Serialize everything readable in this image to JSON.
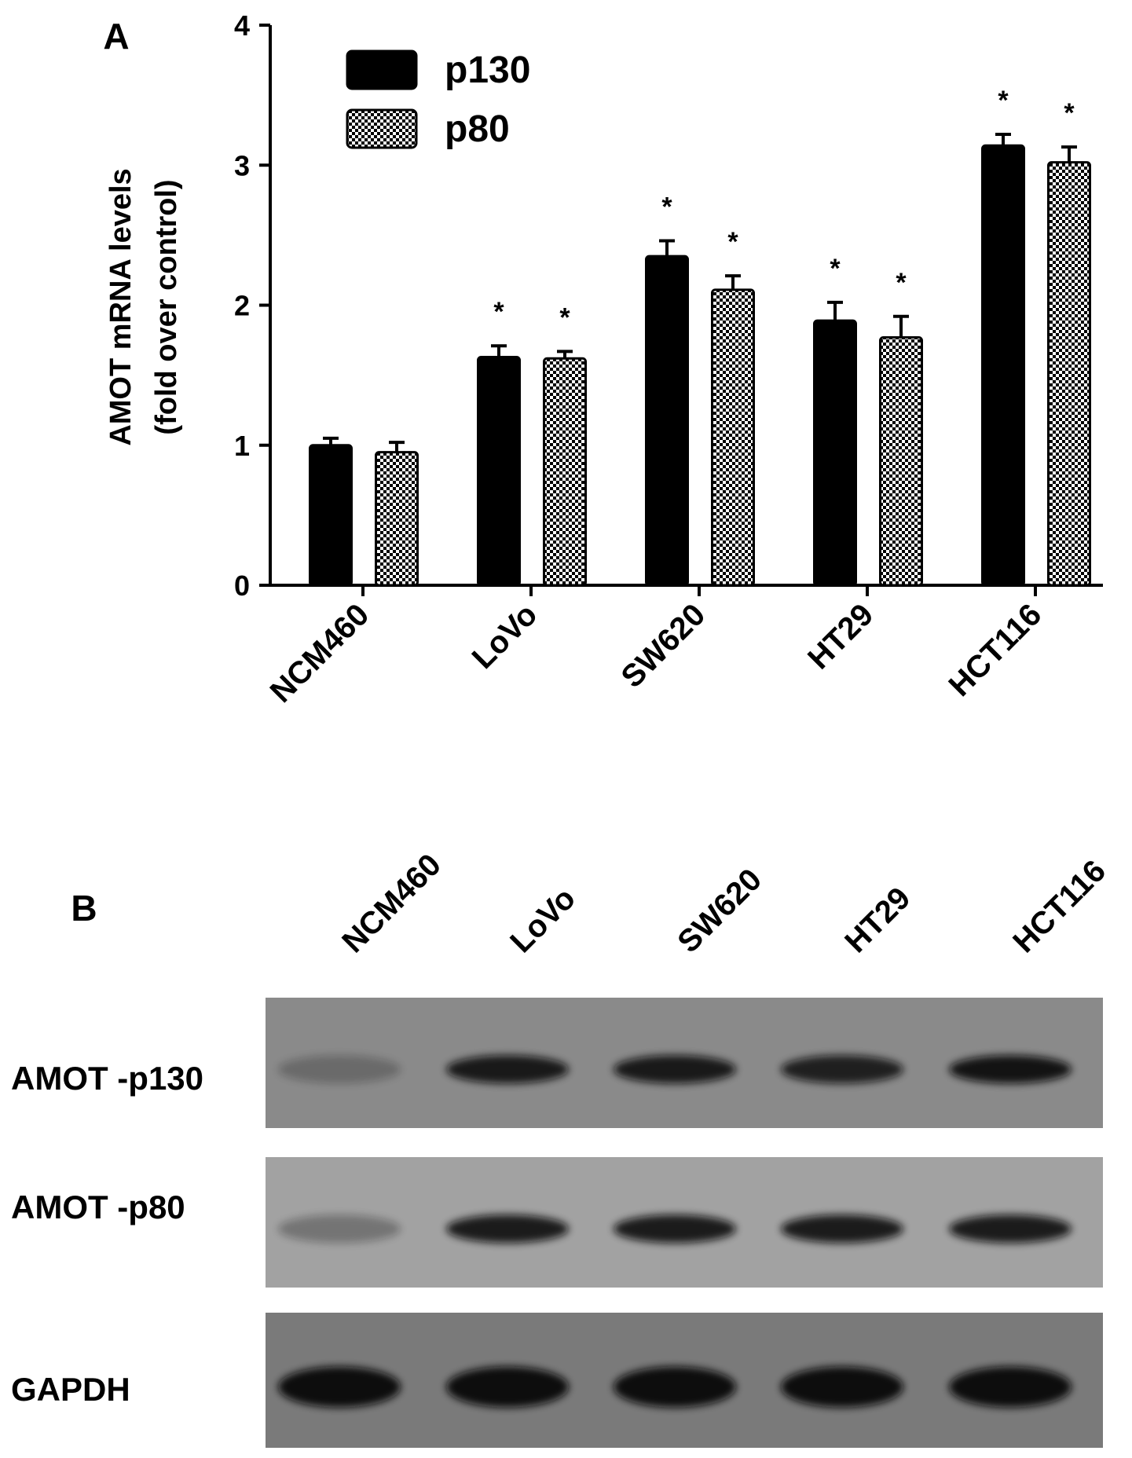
{
  "chart_data": {
    "type": "bar",
    "panel_label": "A",
    "ylabel": [
      "AMOT mRNA levels",
      "(fold over control)"
    ],
    "categories": [
      "NCM460",
      "LoVo",
      "SW620",
      "HT29",
      "HCT116"
    ],
    "series": [
      {
        "name": "p130",
        "color": "#000000",
        "pattern": "solid",
        "values": [
          1.0,
          1.63,
          2.35,
          1.89,
          3.14
        ],
        "errors": [
          0.05,
          0.08,
          0.11,
          0.13,
          0.08
        ],
        "markers": [
          null,
          "*",
          "*",
          "*",
          "*"
        ]
      },
      {
        "name": "p80",
        "color": "#000000",
        "pattern": "checker",
        "values": [
          0.95,
          1.62,
          2.11,
          1.77,
          3.02
        ],
        "errors": [
          0.07,
          0.05,
          0.1,
          0.15,
          0.11
        ],
        "markers": [
          null,
          "*",
          "*",
          "*",
          "*"
        ]
      }
    ],
    "ylim": [
      0,
      4
    ],
    "yticks": [
      0,
      1,
      2,
      3,
      4
    ],
    "grid": false,
    "legend": "top-left"
  },
  "blot": {
    "panel_label": "B",
    "lanes": [
      "NCM460",
      "LoVo",
      "SW620",
      "HT29",
      "HCT116"
    ],
    "rows": [
      "AMOT -p130",
      "AMOT -p80",
      "GAPDH"
    ]
  }
}
